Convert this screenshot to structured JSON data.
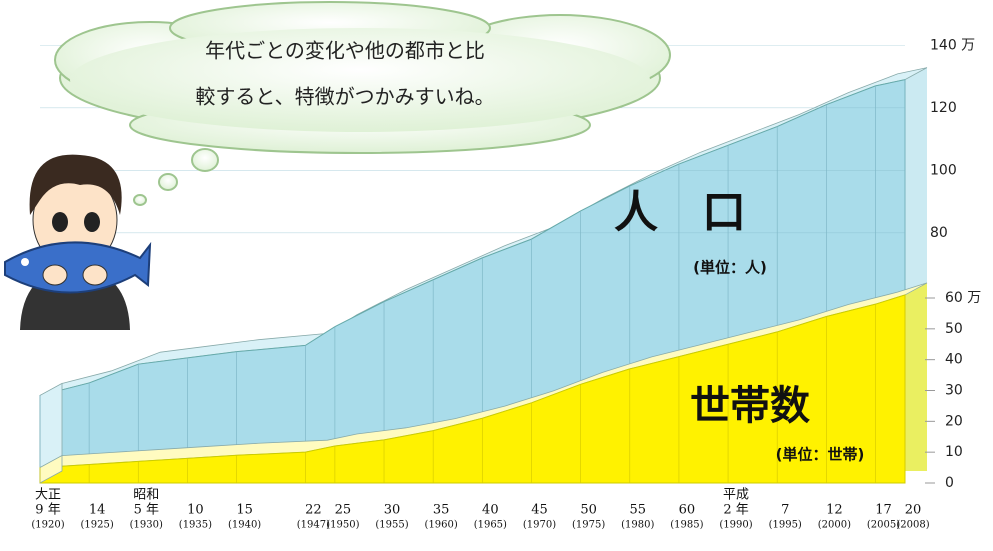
{
  "chart_data": {
    "type": "area",
    "speech": [
      "年代ごとの変化や他の都市と比",
      "較すると、特徴がつかみすいね。"
    ],
    "x": [
      1920,
      1925,
      1930,
      1935,
      1940,
      1947,
      1950,
      1955,
      1960,
      1965,
      1970,
      1975,
      1980,
      1985,
      1990,
      1995,
      2000,
      2005,
      2008
    ],
    "x_labels": [
      [
        "大正",
        "9 年",
        "(1920)"
      ],
      [
        "14",
        "(1925)"
      ],
      [
        "昭和",
        "5 年",
        "(1930)"
      ],
      [
        "10",
        "(1935)"
      ],
      [
        "15",
        "(1940)"
      ],
      [
        "22",
        "(1947)"
      ],
      [
        "25",
        "(1950)"
      ],
      [
        "30",
        "(1955)"
      ],
      [
        "35",
        "(1960)"
      ],
      [
        "40",
        "(1965)"
      ],
      [
        "45",
        "(1970)"
      ],
      [
        "50",
        "(1975)"
      ],
      [
        "55",
        "(1980)"
      ],
      [
        "60",
        "(1985)"
      ],
      [
        "平成",
        "2 年",
        "(1990)"
      ],
      [
        "7",
        "(1995)"
      ],
      [
        "12",
        "(2000)"
      ],
      [
        "17",
        "(2005)"
      ],
      [
        "20",
        "(2008)"
      ]
    ],
    "xlim": [
      1920,
      2008
    ],
    "series": [
      {
        "name": "人　口",
        "unit": "(単位：人)",
        "color": "#a9dcea",
        "values": [
          28,
          32,
          38,
          40,
          42,
          44,
          50,
          58,
          65,
          72,
          78,
          87,
          95,
          102,
          108,
          114,
          121,
          127,
          129
        ]
      },
      {
        "name": "世帯数",
        "unit": "(単位：世帯)",
        "color": "#fff200",
        "axis": "y2",
        "values": [
          5,
          6,
          7,
          8,
          9,
          10,
          12,
          14,
          17,
          21,
          26,
          32,
          37,
          41,
          45,
          49,
          54,
          58,
          61
        ]
      }
    ],
    "ylim": [
      0,
      142
    ],
    "yticks": [
      {
        "value": 140,
        "label": "140 万"
      },
      120,
      100,
      80
    ],
    "y2lim": [
      0,
      144
    ],
    "y2ticks": [
      {
        "value": 60,
        "label": "60 万"
      },
      50,
      40,
      30,
      20,
      10,
      0
    ]
  }
}
